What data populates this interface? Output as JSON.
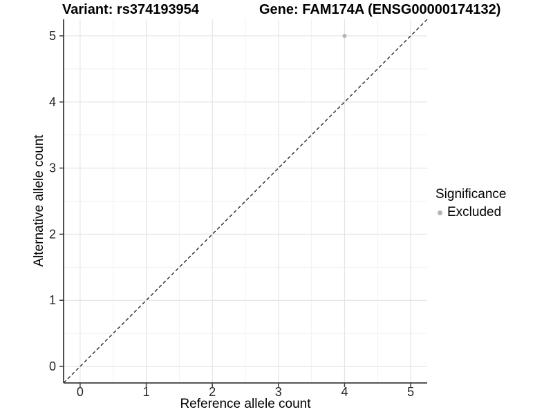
{
  "chart_data": {
    "type": "scatter",
    "title_left": "Variant: rs374193954",
    "title_right": "Gene: FAM174A (ENSG00000174132)",
    "xlabel": "Reference allele count",
    "ylabel": "Alternative allele count",
    "xlim": [
      -0.25,
      5.25
    ],
    "ylim": [
      -0.25,
      5.25
    ],
    "x_ticks": [
      0,
      1,
      2,
      3,
      4,
      5
    ],
    "y_ticks": [
      0,
      1,
      2,
      3,
      4,
      5
    ],
    "minor_grid_step": 0.5,
    "grid": "major+minor",
    "legend_position": "right",
    "legend": {
      "title": "Significance",
      "entries": [
        {
          "label": "Excluded",
          "color": "#b4b4b4"
        }
      ]
    },
    "series": [
      {
        "name": "Excluded",
        "color": "#b4b4b4",
        "points": [
          {
            "x": 4,
            "y": 5
          }
        ]
      }
    ],
    "reference_line": {
      "slope": 1,
      "intercept": 0,
      "style": "dashed",
      "color": "#1a1a1a"
    },
    "style": {
      "background": "#ffffff",
      "grid_major": "#e4e4e4",
      "grid_minor": "#f1f1f1",
      "axis_line": "#3c3c3c",
      "tick_label_color": "#262626",
      "point_radius": 3,
      "legend_dot_radius": 3.5
    }
  }
}
